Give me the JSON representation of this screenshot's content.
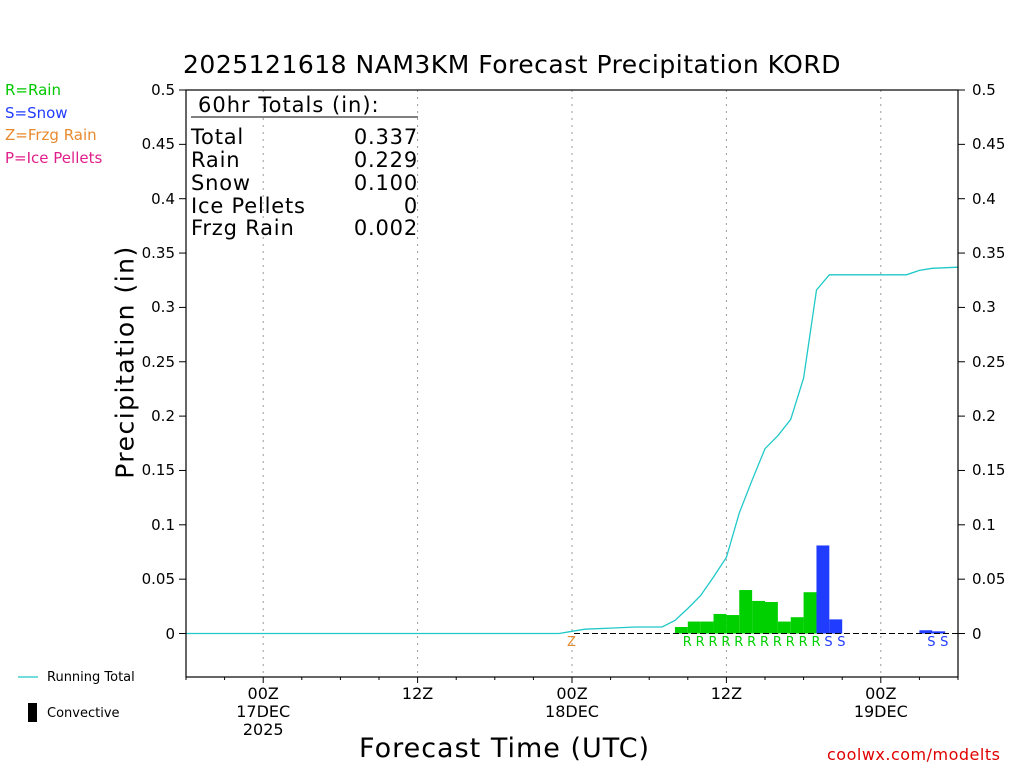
{
  "chart_data": {
    "type": "bar",
    "title": "2025121618 NAM3KM Forecast Precipitation KORD",
    "xlabel": "Forecast Time (UTC)",
    "ylabel": "Precipitation (in)",
    "ylim": [
      -0.04,
      0.5
    ],
    "yticks": [
      "0",
      "0.05",
      "0.1",
      "0.15",
      "0.2",
      "0.25",
      "0.3",
      "0.35",
      "0.4",
      "0.45",
      "0.5"
    ],
    "ytick_values": [
      0,
      0.05,
      0.1,
      0.15,
      0.2,
      0.25,
      0.3,
      0.35,
      0.4,
      0.45,
      0.5
    ],
    "xlim_hours": [
      0,
      60
    ],
    "xticks": [
      {
        "hour": 6,
        "label": "00Z",
        "sub1": "17DEC",
        "sub2": "2025"
      },
      {
        "hour": 18,
        "label": "12Z",
        "sub1": "",
        "sub2": ""
      },
      {
        "hour": 30,
        "label": "00Z",
        "sub1": "18DEC",
        "sub2": ""
      },
      {
        "hour": 42,
        "label": "12Z",
        "sub1": "",
        "sub2": ""
      },
      {
        "hour": 54,
        "label": "00Z",
        "sub1": "19DEC",
        "sub2": ""
      }
    ],
    "bars": [
      {
        "hour": 38.5,
        "value": 0.006,
        "type": "R"
      },
      {
        "hour": 39.5,
        "value": 0.011,
        "type": "R"
      },
      {
        "hour": 40.5,
        "value": 0.011,
        "type": "R"
      },
      {
        "hour": 41.5,
        "value": 0.018,
        "type": "R"
      },
      {
        "hour": 42.5,
        "value": 0.017,
        "type": "R"
      },
      {
        "hour": 43.5,
        "value": 0.04,
        "type": "R"
      },
      {
        "hour": 44.5,
        "value": 0.03,
        "type": "R"
      },
      {
        "hour": 45.5,
        "value": 0.029,
        "type": "R"
      },
      {
        "hour": 46.5,
        "value": 0.011,
        "type": "R"
      },
      {
        "hour": 47.5,
        "value": 0.015,
        "type": "R"
      },
      {
        "hour": 48.5,
        "value": 0.038,
        "type": "R"
      },
      {
        "hour": 49.5,
        "value": 0.081,
        "type": "S"
      },
      {
        "hour": 50.5,
        "value": 0.013,
        "type": "S"
      },
      {
        "hour": 57.5,
        "value": 0.003,
        "type": "S"
      },
      {
        "hour": 58.5,
        "value": 0.002,
        "type": "S"
      }
    ],
    "ptype_markers": [
      {
        "hour": 30,
        "letter": "Z"
      },
      {
        "hour": 39,
        "letter": "R"
      },
      {
        "hour": 40,
        "letter": "R"
      },
      {
        "hour": 41,
        "letter": "R"
      },
      {
        "hour": 42,
        "letter": "R"
      },
      {
        "hour": 43,
        "letter": "R"
      },
      {
        "hour": 44,
        "letter": "R"
      },
      {
        "hour": 45,
        "letter": "R"
      },
      {
        "hour": 46,
        "letter": "R"
      },
      {
        "hour": 47,
        "letter": "R"
      },
      {
        "hour": 48,
        "letter": "R"
      },
      {
        "hour": 49,
        "letter": "R"
      },
      {
        "hour": 50,
        "letter": "S"
      },
      {
        "hour": 51,
        "letter": "S"
      },
      {
        "hour": 58,
        "letter": "S"
      },
      {
        "hour": 59,
        "letter": "S"
      }
    ],
    "running_total": {
      "hours": [
        0,
        29,
        30,
        31,
        33,
        35,
        37,
        38,
        39,
        40,
        41,
        42,
        43,
        44,
        45,
        46,
        47,
        48,
        49,
        50,
        51,
        53,
        54,
        56,
        57,
        58,
        60
      ],
      "values": [
        0,
        0,
        0.002,
        0.004,
        0.005,
        0.006,
        0.006,
        0.012,
        0.023,
        0.035,
        0.052,
        0.07,
        0.111,
        0.141,
        0.17,
        0.182,
        0.197,
        0.235,
        0.316,
        0.33,
        0.33,
        0.33,
        0.33,
        0.33,
        0.334,
        0.336,
        0.337
      ]
    },
    "legend": [
      {
        "label": "R=Rain",
        "color": "#00c800"
      },
      {
        "label": "S=Snow",
        "color": "#1f3cff"
      },
      {
        "label": "Z=Frzg Rain",
        "color": "#e88a2e"
      },
      {
        "label": "P=Ice Pellets",
        "color": "#e0208a"
      }
    ],
    "legend_bottom": {
      "running_total": "Running Total",
      "convective": "Convective"
    },
    "totals_box": {
      "header": "60hr Totals (in):",
      "rows": [
        {
          "name": "Total",
          "value": "0.337"
        },
        {
          "name": "Rain",
          "value": "0.229"
        },
        {
          "name": "Snow",
          "value": "0.100"
        },
        {
          "name": "Ice Pellets",
          "value": "0"
        },
        {
          "name": "Frzg Rain",
          "value": "0.002"
        }
      ]
    },
    "colors": {
      "rain": "#00d000",
      "snow": "#1f3cff",
      "frzg": "#e88a2e",
      "ice": "#e0208a",
      "running_total": "#20c8c8",
      "convective": "#000000"
    }
  },
  "credit": "coolwx.com/modelts"
}
